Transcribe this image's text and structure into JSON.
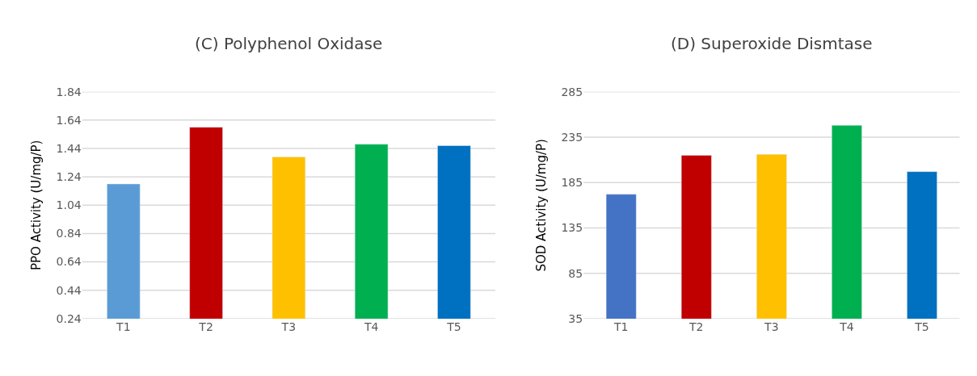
{
  "chart_data": [
    {
      "type": "bar",
      "title": "(C) Polyphenol Oxidase",
      "ylabel": "PPO Activity (U/mg/P)",
      "categories": [
        "T1",
        "T2",
        "T3",
        "T4",
        "T5"
      ],
      "values": [
        1.19,
        1.59,
        1.38,
        1.47,
        1.46
      ],
      "colors": [
        "#5b9bd5",
        "#c00000",
        "#ffc000",
        "#00b050",
        "#0070c0"
      ],
      "ylim": [
        0.24,
        1.84
      ],
      "yticks": [
        0.24,
        0.44,
        0.64,
        0.84,
        1.04,
        1.24,
        1.44,
        1.64,
        1.84
      ],
      "grid": "y"
    },
    {
      "type": "bar",
      "title": "(D) Superoxide Dismtase",
      "ylabel": "SOD Activity (U/mg/P)",
      "categories": [
        "T1",
        "T2",
        "T3",
        "T4",
        "T5"
      ],
      "values": [
        172,
        215,
        216,
        248,
        197
      ],
      "colors": [
        "#4472c4",
        "#c00000",
        "#ffc000",
        "#00b050",
        "#0070c0"
      ],
      "ylim": [
        35,
        285
      ],
      "yticks": [
        35,
        85,
        135,
        185,
        235,
        285
      ],
      "grid": "y"
    }
  ]
}
